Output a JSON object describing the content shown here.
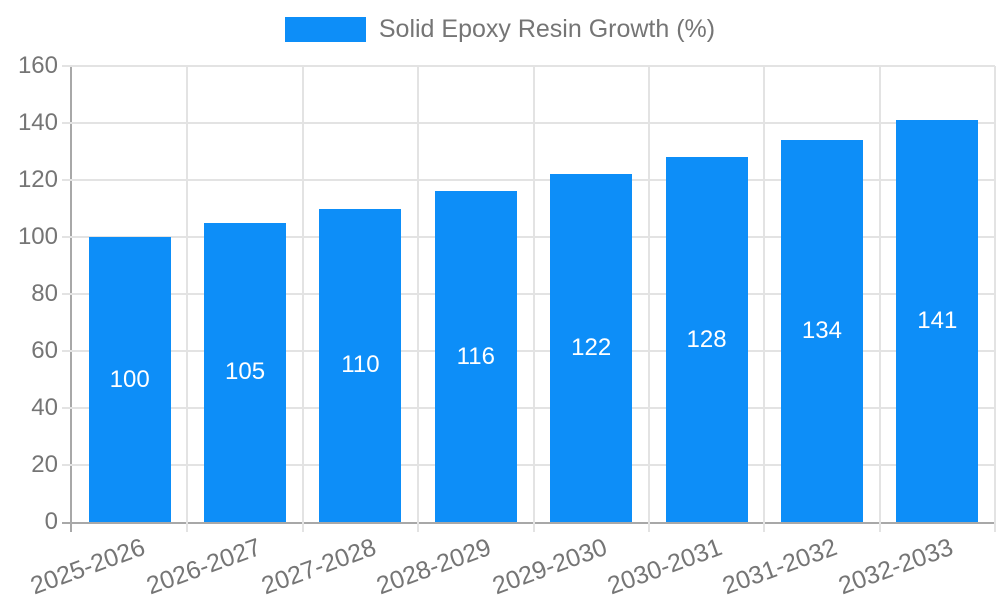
{
  "legend": {
    "label": "Solid Epoxy Resin Growth (%)"
  },
  "chart_data": {
    "type": "bar",
    "title": "Solid Epoxy Resin Growth (%)",
    "categories": [
      "2025-2026",
      "2026-2027",
      "2027-2028",
      "2028-2029",
      "2029-2030",
      "2030-2031",
      "2031-2032",
      "2032-2033"
    ],
    "values": [
      100,
      105,
      110,
      116,
      122,
      128,
      134,
      141
    ],
    "bar_value_labels": [
      "100",
      "105",
      "110",
      "116",
      "122",
      "128",
      "134",
      "141"
    ],
    "xlabel": "",
    "ylabel": "",
    "ylim": [
      0,
      160
    ],
    "yticks": [
      0,
      20,
      40,
      60,
      80,
      100,
      120,
      140,
      160
    ],
    "grid": true,
    "legend_position": "top-center",
    "colors": {
      "bar": "#0d8ef8",
      "text": "#757575",
      "grid": "#e3e3e3",
      "axis": "#a8a8a8",
      "value_label": "#ffffff",
      "background": "#ffffff"
    }
  }
}
